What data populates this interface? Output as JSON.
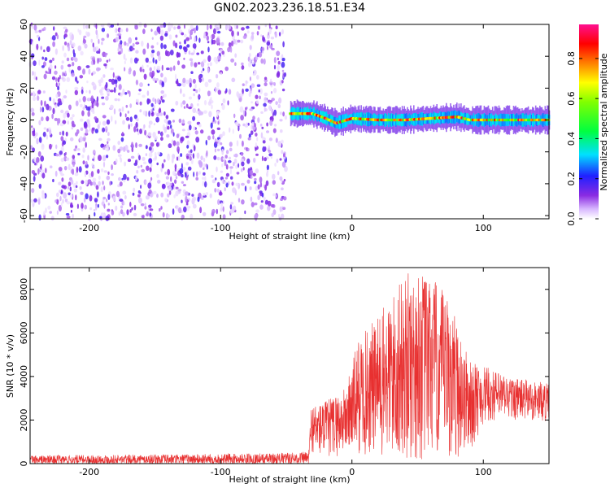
{
  "figure": {
    "title": "GN02.2023.236.18.51.E34"
  },
  "colors": {
    "snr_line": "#e83030",
    "axis": "#000000",
    "frame": "#000000"
  },
  "chart_data": [
    {
      "type": "heatmap",
      "xlabel": "Height of straight line (km)",
      "ylabel": "Frequency (Hz)",
      "xlim": [
        -245,
        150
      ],
      "ylim": [
        -62,
        60
      ],
      "x_ticks": [
        -200,
        -100,
        0,
        100
      ],
      "y_ticks": [
        -60,
        -40,
        -20,
        0,
        20,
        40,
        60
      ],
      "colorbar": {
        "label": "Normalized spectral amplitude",
        "range": [
          0,
          0.97
        ],
        "ticks": [
          0.0,
          0.2,
          0.4,
          0.6,
          0.8
        ],
        "colormap": "rainbow (white-violet-blue-cyan-green-yellow-red-magenta)"
      },
      "regions": [
        {
          "description": "broadband low-amplitude speckle",
          "x_range": [
            -245,
            -50
          ],
          "freq_range": [
            -62,
            60
          ],
          "amplitude": 0.15
        },
        {
          "description": "narrow band signal",
          "x_range": [
            -47,
            150
          ],
          "freq_center": [
            [
              -45,
              4
            ],
            [
              -30,
              4
            ],
            [
              -20,
              1
            ],
            [
              -12,
              -2
            ],
            [
              0,
              1
            ],
            [
              20,
              0
            ],
            [
              40,
              0
            ],
            [
              60,
              1
            ],
            [
              80,
              2
            ],
            [
              90,
              0
            ],
            [
              150,
              0
            ]
          ],
          "band_halfwidth_hz": 4,
          "peak_amplitude": 0.95
        }
      ]
    },
    {
      "type": "line",
      "xlabel": "Height of straight line (km)",
      "ylabel": "SNR (10 * v/v)",
      "xlim": [
        -245,
        150
      ],
      "ylim": [
        0,
        9000
      ],
      "x_ticks": [
        -200,
        -100,
        0,
        100
      ],
      "y_ticks": [
        0,
        2000,
        4000,
        6000,
        8000
      ],
      "series": [
        {
          "color": "#e83030",
          "envelope": [
            {
              "x": -245,
              "low": 0,
              "high": 380
            },
            {
              "x": -150,
              "low": 0,
              "high": 420
            },
            {
              "x": -60,
              "low": 0,
              "high": 480
            },
            {
              "x": -33,
              "low": 0,
              "high": 550
            },
            {
              "x": -31,
              "low": 500,
              "high": 2700
            },
            {
              "x": -20,
              "low": 200,
              "high": 2900
            },
            {
              "x": -5,
              "low": 400,
              "high": 3500
            },
            {
              "x": 5,
              "low": 300,
              "high": 5800
            },
            {
              "x": 20,
              "low": 100,
              "high": 6800
            },
            {
              "x": 35,
              "low": 0,
              "high": 8200
            },
            {
              "x": 45,
              "low": 0,
              "high": 8900
            },
            {
              "x": 60,
              "low": 0,
              "high": 8700
            },
            {
              "x": 75,
              "low": 0,
              "high": 7500
            },
            {
              "x": 90,
              "low": 500,
              "high": 4700
            },
            {
              "x": 100,
              "low": 1800,
              "high": 4500
            },
            {
              "x": 120,
              "low": 2000,
              "high": 4000
            },
            {
              "x": 150,
              "low": 1900,
              "high": 3700
            }
          ]
        }
      ]
    }
  ]
}
